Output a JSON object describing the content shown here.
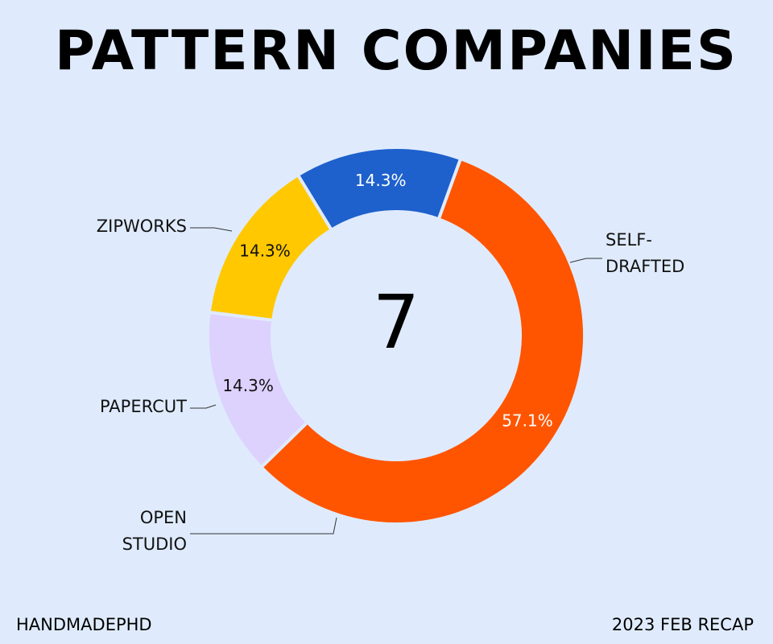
{
  "footer": {
    "left": "HANDMADEPHD",
    "right": "2023 FEB RECAP"
  },
  "chart_data": {
    "type": "pie",
    "variant": "donut",
    "title": "PATTERN COMPANIES",
    "center_label": "7",
    "categories": [
      "SELF-DRAFTED",
      "OPEN STUDIO",
      "PAPERCUT",
      "ZIPWORKS"
    ],
    "values": [
      4,
      1,
      1,
      1
    ],
    "percent_labels": [
      "57.1%",
      "14.3%",
      "14.3%",
      "14.3%"
    ],
    "label_lines": [
      [
        "SELF-",
        "DRAFTED"
      ],
      [
        "OPEN",
        "STUDIO"
      ],
      [
        "PAPERCUT"
      ],
      [
        "ZIPWORKS"
      ]
    ],
    "colors": [
      "#ff5500",
      "#ddd1fd",
      "#ffc800",
      "#1e60cc"
    ],
    "label_text_colors": [
      "#ffffff",
      "#111111",
      "#111111",
      "#ffffff"
    ],
    "legend": "none",
    "start_angle_deg": 20,
    "direction": "clockwise"
  }
}
